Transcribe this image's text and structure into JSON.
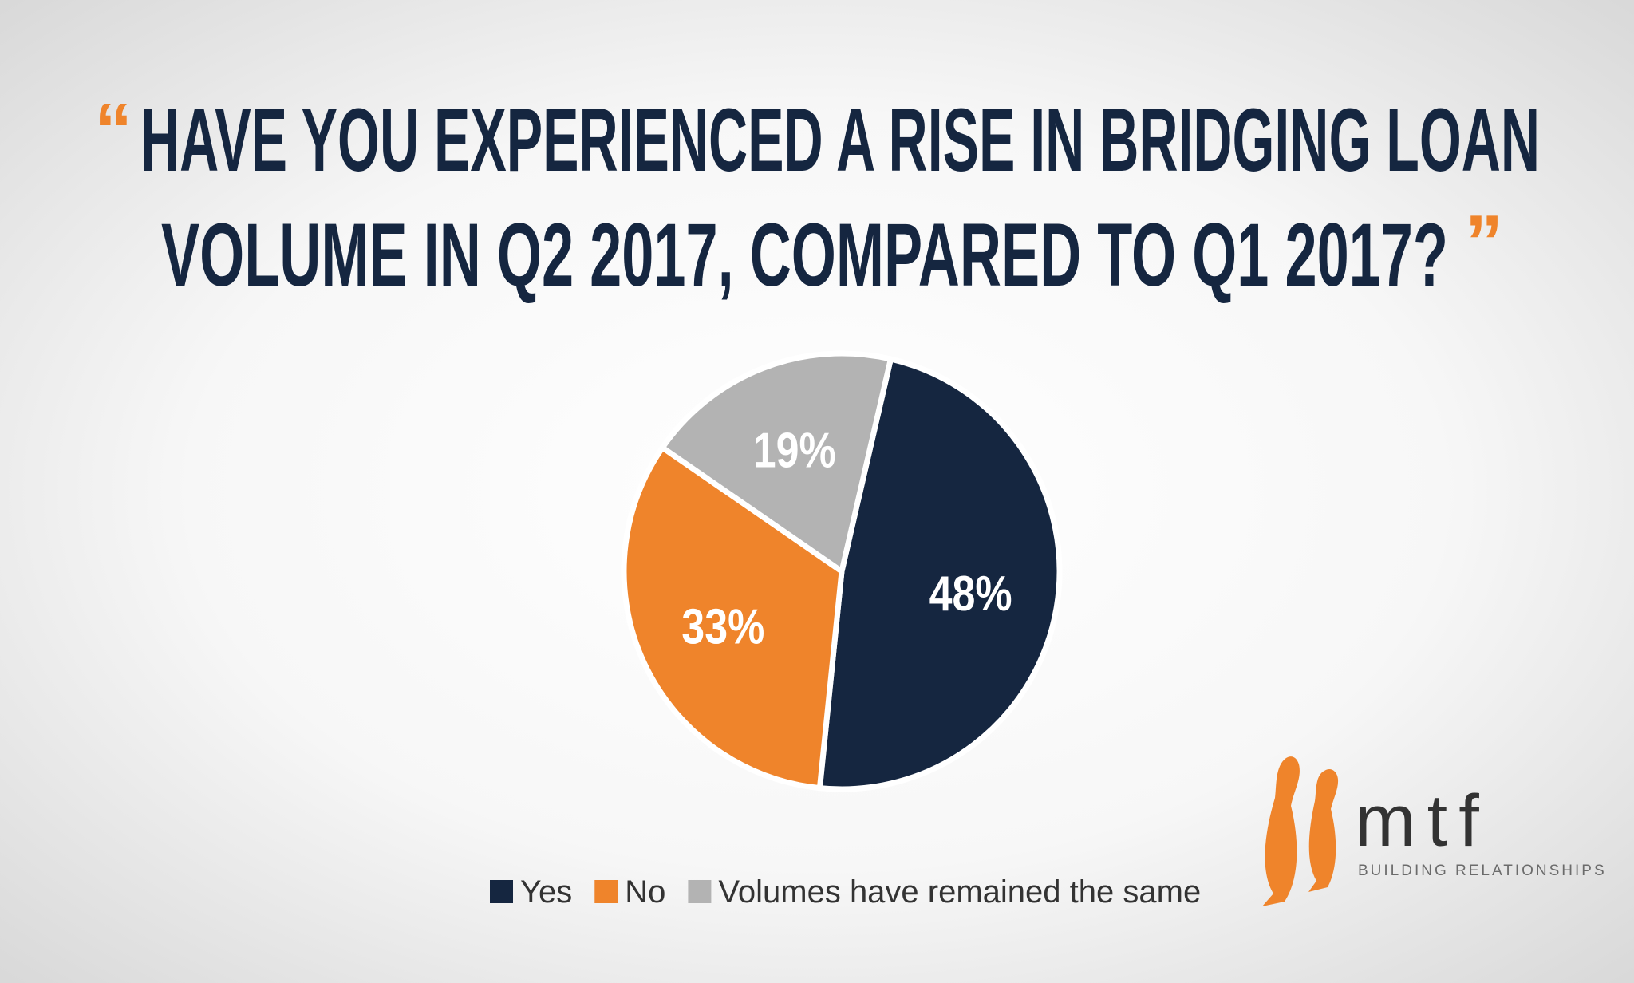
{
  "chart_data": {
    "type": "pie",
    "title": [
      "HAVE YOU EXPERIENCED A RISE IN BRIDGING LOAN",
      "VOLUME IN Q2 2017, COMPARED TO Q1 2017?"
    ],
    "open_quote": "“",
    "close_quote": "”",
    "categories": [
      "Yes",
      "No",
      "Volumes have remained the same"
    ],
    "values": [
      48,
      33,
      19
    ],
    "value_labels": [
      "48%",
      "33%",
      "19%"
    ],
    "colors": [
      "#152640",
      "#ef842b",
      "#b3b3b3"
    ],
    "legend": "bottom"
  },
  "logo": {
    "name": "mtf",
    "tagline": "BUILDING RELATIONSHIPS"
  }
}
